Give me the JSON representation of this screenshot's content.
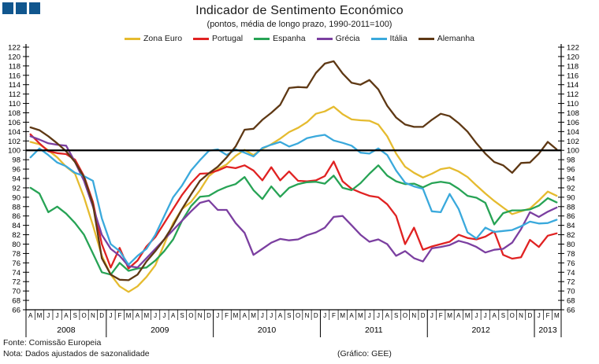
{
  "header": {
    "title": "Indicador de Sentimento Económico",
    "subtitle": "(pontos, média de longo prazo, 1990-2011=100)"
  },
  "logo": {
    "color": "#10568e",
    "squares": 3
  },
  "footer": {
    "fonte": "Fonte: Comissão Europeia",
    "nota": "Nota: Dados ajustados de sazonalidade",
    "grafico": "(Gráfico: GEE)"
  },
  "chart_data": {
    "type": "line",
    "title": "Indicador de Sentimento Económico",
    "subtitle": "(pontos, média de longo prazo, 1990-2011=100)",
    "y_axis": {
      "min": 66,
      "max": 122,
      "step": 2,
      "labeled_both_sides": true
    },
    "reference_value": 100,
    "grid": false,
    "legend_position": "top",
    "x_start": "Abr 2008",
    "x_end": "Mar 2013",
    "month_letters": [
      "A",
      "M",
      "J",
      "J",
      "A",
      "S",
      "O",
      "N",
      "D",
      "J",
      "F",
      "M",
      "A",
      "M",
      "J",
      "J",
      "A",
      "S",
      "O",
      "N",
      "D",
      "J",
      "F",
      "M",
      "A",
      "M",
      "J",
      "J",
      "A",
      "S",
      "O",
      "N",
      "D",
      "J",
      "F",
      "M",
      "A",
      "M",
      "J",
      "J",
      "A",
      "S",
      "O",
      "N",
      "D",
      "J",
      "F",
      "M",
      "A",
      "M",
      "J",
      "J",
      "A",
      "S",
      "O",
      "N",
      "D",
      "J",
      "F",
      "M"
    ],
    "years": [
      {
        "label": "2008",
        "months": 9
      },
      {
        "label": "2009",
        "months": 12
      },
      {
        "label": "2010",
        "months": 12
      },
      {
        "label": "2011",
        "months": 12
      },
      {
        "label": "2012",
        "months": 12
      },
      {
        "label": "2013",
        "months": 3
      }
    ],
    "series": [
      {
        "name": "Zona Euro",
        "color": "#e5bb2f",
        "values": [
          101.8,
          101.3,
          100.0,
          98.5,
          96.5,
          95.0,
          90.0,
          84.0,
          77.5,
          73.5,
          71.0,
          69.8,
          71.0,
          73.0,
          75.5,
          80.0,
          84.5,
          87.5,
          89.0,
          91.5,
          94.5,
          96.0,
          97.0,
          98.8,
          100.1,
          99.0,
          100.3,
          101.3,
          102.5,
          103.9,
          104.8,
          106.0,
          107.8,
          108.3,
          109.3,
          107.7,
          106.6,
          106.4,
          106.3,
          105.5,
          103.0,
          99.3,
          96.5,
          95.2,
          94.2,
          95.0,
          96.0,
          96.3,
          95.5,
          94.3,
          92.5,
          90.8,
          89.2,
          87.8,
          86.4,
          87.0,
          87.6,
          89.3,
          91.2,
          90.3
        ]
      },
      {
        "name": "Portugal",
        "color": "#e02222",
        "values": [
          103.4,
          101.5,
          99.8,
          99.4,
          99.2,
          98.0,
          94.5,
          89.0,
          80.0,
          75.0,
          79.2,
          74.8,
          76.5,
          79.5,
          81.5,
          84.5,
          87.5,
          90.5,
          93.0,
          95.0,
          95.1,
          95.7,
          96.5,
          96.2,
          96.8,
          95.7,
          93.6,
          96.4,
          93.6,
          95.5,
          93.5,
          93.4,
          93.6,
          94.5,
          97.6,
          93.4,
          91.8,
          91.0,
          90.3,
          90.0,
          88.5,
          86.0,
          80.0,
          83.5,
          78.8,
          79.5,
          80.0,
          80.5,
          82.0,
          81.3,
          81.0,
          81.6,
          82.7,
          77.7,
          76.9,
          77.2,
          80.9,
          79.4,
          81.8,
          82.3
        ]
      },
      {
        "name": "Espanha",
        "color": "#27a355",
        "values": [
          92.0,
          90.8,
          86.8,
          88.0,
          86.5,
          84.5,
          82.0,
          78.0,
          74.0,
          73.5,
          76.0,
          74.3,
          74.8,
          75.0,
          76.5,
          78.5,
          81.0,
          85.0,
          88.1,
          90.1,
          90.3,
          91.4,
          92.2,
          92.8,
          94.3,
          91.5,
          89.6,
          92.3,
          90.1,
          92.0,
          92.8,
          93.2,
          93.3,
          92.9,
          94.6,
          92.0,
          91.5,
          93.0,
          95.0,
          96.8,
          94.6,
          93.4,
          92.8,
          92.9,
          92.1,
          93.0,
          93.3,
          93.0,
          91.8,
          90.3,
          89.9,
          88.8,
          84.2,
          86.6,
          87.2,
          87.2,
          87.4,
          88.2,
          89.8,
          88.9
        ]
      },
      {
        "name": "Grécia",
        "color": "#7b3fa0",
        "values": [
          103.0,
          102.3,
          101.5,
          101.2,
          101.0,
          97.5,
          93.5,
          88.0,
          82.0,
          79.0,
          77.5,
          75.3,
          75.0,
          77.0,
          79.0,
          81.0,
          83.0,
          85.0,
          87.0,
          88.8,
          89.3,
          87.3,
          87.3,
          84.5,
          82.4,
          77.7,
          79.0,
          80.3,
          81.1,
          80.8,
          81.0,
          81.9,
          82.5,
          83.5,
          85.8,
          86.0,
          84.0,
          82.0,
          80.5,
          81.0,
          80.0,
          77.5,
          78.5,
          77.0,
          76.3,
          79.1,
          79.4,
          79.8,
          80.7,
          80.2,
          79.4,
          78.2,
          78.8,
          79.0,
          80.3,
          83.2,
          86.8,
          85.8,
          86.9,
          87.8
        ]
      },
      {
        "name": "Itália",
        "color": "#3aa9dc",
        "values": [
          98.5,
          100.4,
          99.0,
          97.4,
          96.6,
          95.2,
          94.5,
          93.5,
          85.5,
          80.0,
          78.5,
          75.6,
          77.5,
          79.0,
          82.0,
          86.0,
          90.0,
          92.5,
          95.7,
          97.9,
          99.9,
          100.2,
          99.0,
          100.2,
          99.5,
          98.7,
          100.5,
          101.2,
          101.8,
          100.8,
          101.5,
          102.6,
          103.0,
          103.3,
          102.1,
          101.6,
          101.0,
          99.5,
          99.3,
          100.4,
          99.0,
          95.7,
          93.1,
          92.3,
          91.8,
          87.0,
          86.8,
          90.7,
          87.5,
          82.5,
          81.2,
          83.5,
          82.6,
          82.8,
          83.0,
          83.8,
          84.8,
          84.4,
          84.5,
          85.2
        ]
      },
      {
        "name": "Alemanha",
        "color": "#5e3814",
        "values": [
          104.9,
          104.3,
          103.0,
          101.5,
          99.8,
          97.5,
          94.3,
          88.5,
          77.0,
          73.5,
          72.4,
          72.3,
          73.5,
          76.3,
          78.5,
          81.0,
          84.0,
          87.5,
          90.6,
          93.5,
          95.1,
          96.5,
          98.5,
          100.8,
          104.4,
          104.6,
          106.5,
          108.0,
          109.7,
          113.3,
          113.5,
          113.4,
          116.5,
          118.5,
          119.0,
          116.4,
          114.4,
          114.0,
          115.0,
          113.0,
          109.5,
          107.0,
          105.5,
          105.0,
          105.0,
          106.5,
          107.8,
          107.3,
          105.8,
          104.0,
          101.5,
          99.3,
          97.5,
          96.8,
          95.2,
          97.3,
          97.4,
          99.3,
          101.8,
          100.2
        ]
      }
    ]
  }
}
